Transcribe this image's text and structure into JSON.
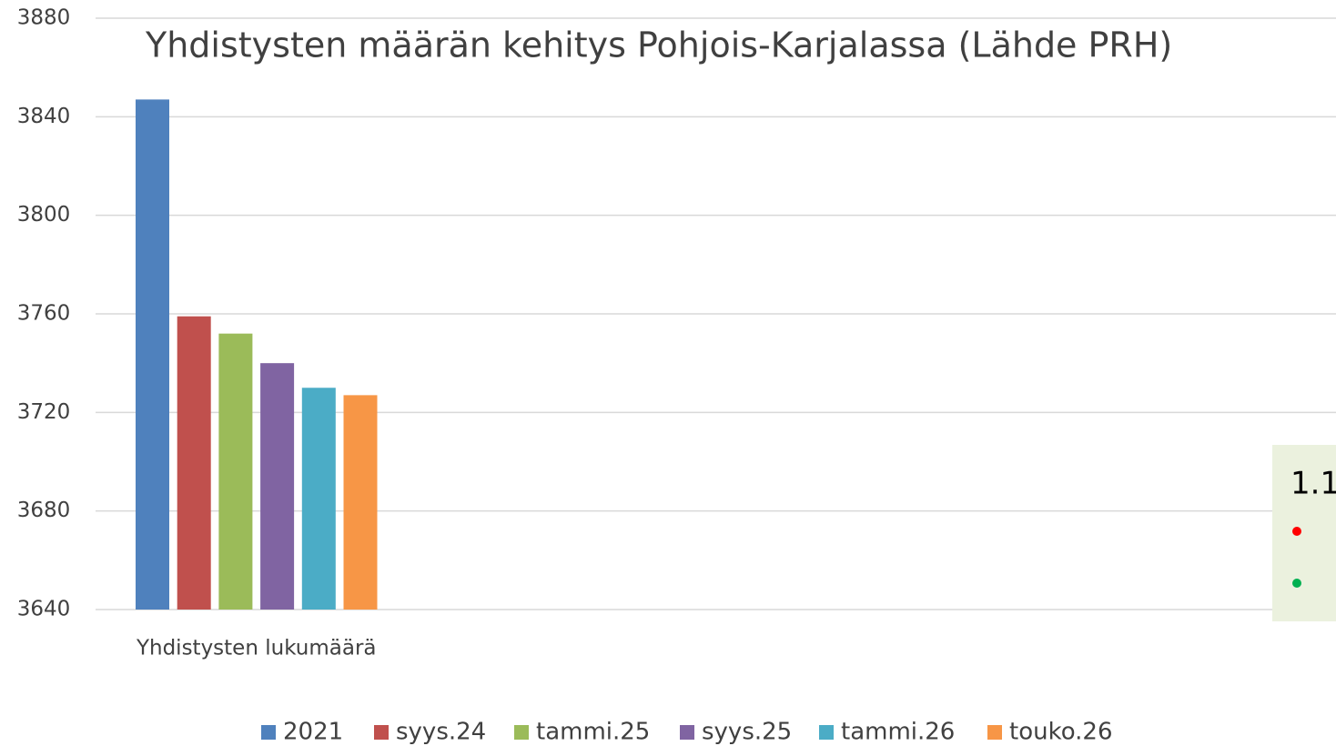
{
  "chart_data": {
    "type": "bar",
    "title": "Yhdistysten määrän kehitys Pohjois-Karjalassa (Lähde PRH)",
    "categories": [
      "Yhdistysten lukumäärä"
    ],
    "series": [
      {
        "name": "2021",
        "color": "#4f81bd",
        "values": [
          3847
        ]
      },
      {
        "name": "syys.24",
        "color": "#c0504d",
        "values": [
          3759
        ]
      },
      {
        "name": "tammi.25",
        "color": "#9bbb59",
        "values": [
          3752
        ]
      },
      {
        "name": "syys.25",
        "color": "#8064a2",
        "values": [
          3740
        ]
      },
      {
        "name": "tammi.26",
        "color": "#4bacc6",
        "values": [
          3730
        ]
      },
      {
        "name": "touko.26",
        "color": "#f79646",
        "values": [
          3727
        ]
      }
    ],
    "ylim": [
      3640,
      3880
    ],
    "yticks": [
      3640,
      3680,
      3720,
      3760,
      3800,
      3840,
      3880
    ],
    "grid": true,
    "legend": "bottom"
  },
  "overlay": {
    "text": "1.1"
  }
}
